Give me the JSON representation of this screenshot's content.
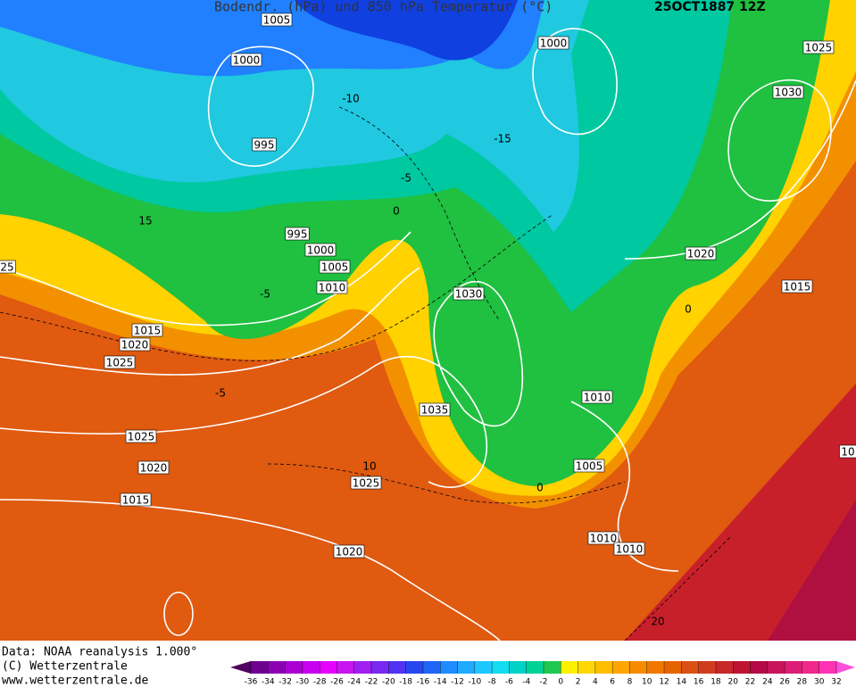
{
  "header": {
    "title": "Bodendr. (hPa) und 850 hPa Temperatur (°C)",
    "date": "25OCT1887 12Z"
  },
  "isobar_labels": [
    "1005",
    "1000",
    "995",
    "995",
    "1000",
    "1005",
    "1010",
    "1015",
    "1020",
    "1025",
    "1025",
    "1020",
    "1015",
    "1025",
    "1020",
    "1035",
    "1030",
    "1010",
    "1005",
    "1010",
    "1010",
    "1000",
    "1025",
    "1030",
    "1020",
    "1015",
    "10",
    "25"
  ],
  "isotherm_labels": [
    "-10",
    "-15",
    "-5",
    "0",
    "-5",
    "-5",
    "10",
    "0",
    "0",
    "15",
    "20"
  ],
  "footer": {
    "source": "Data: NOAA reanalysis 1.000°",
    "copyright": "(C) Wetterzentrale",
    "url": "www.wetterzentrale.de"
  },
  "colorbar": {
    "ticks": [
      -36,
      -34,
      -32,
      -30,
      -28,
      -26,
      -24,
      -22,
      -20,
      -18,
      -16,
      -14,
      -12,
      -10,
      -8,
      -6,
      -4,
      -2,
      0,
      2,
      4,
      6,
      8,
      10,
      12,
      14,
      16,
      18,
      20,
      22,
      24,
      26,
      28,
      30,
      32
    ],
    "colors": [
      "#500060",
      "#6e0090",
      "#8c00b4",
      "#aa00d2",
      "#c800f0",
      "#e600ff",
      "#c814f0",
      "#a01ef0",
      "#7828f0",
      "#5032f0",
      "#2846f0",
      "#1e64f5",
      "#1e8cff",
      "#1eaaff",
      "#1ec8ff",
      "#14dcf0",
      "#00d2c8",
      "#00d296",
      "#1ec850",
      "#fff000",
      "#ffd700",
      "#ffbe00",
      "#ffa500",
      "#f58c00",
      "#f07800",
      "#e66400",
      "#dc5014",
      "#d23c1e",
      "#c82828",
      "#be1432",
      "#b40a46",
      "#c8145a",
      "#dc1e78",
      "#f0288c",
      "#ff32b4",
      "#ff50dc"
    ]
  }
}
